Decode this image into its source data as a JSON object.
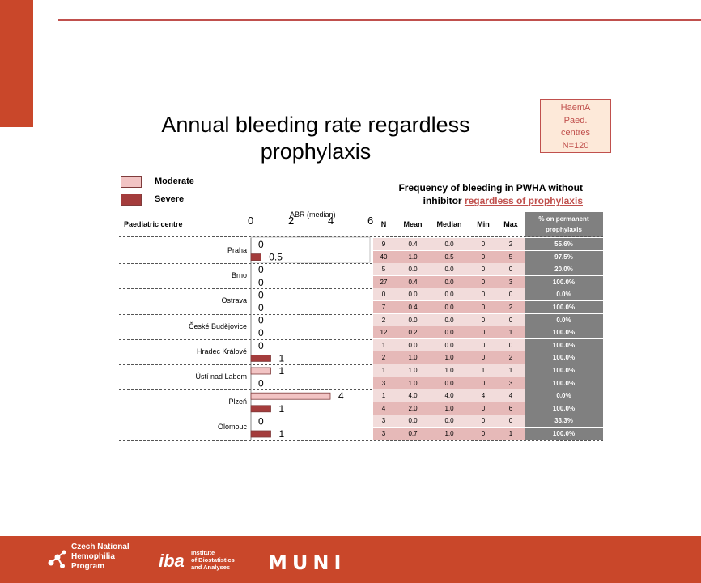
{
  "title": "Annual bleeding rate regardless prophylaxis",
  "haema_box": [
    "HaemA",
    "Paed.",
    "centres",
    "N=120"
  ],
  "legend": [
    {
      "label": "Moderate",
      "color": "#f2c4c4"
    },
    {
      "label": "Severe",
      "color": "#a43c3c"
    }
  ],
  "table_title": {
    "line1": "Frequency of bleeding in PWHA without",
    "line2_prefix": "inhibitor ",
    "line2_highlight": "regardless of prophylaxis"
  },
  "headers": {
    "centre": "Paediatric centre",
    "n": "N",
    "mean": "Mean",
    "median": "Median",
    "min": "Min",
    "max": "Max",
    "pct_line1": "% on permanent",
    "pct_line2": "prophylaxis"
  },
  "chart_data": {
    "type": "bar",
    "orientation": "horizontal",
    "title": "",
    "xlabel": "ABR (median)",
    "xlim": [
      0,
      6
    ],
    "xticks": [
      "0",
      "2",
      "4",
      "6"
    ],
    "categories": [
      "Praha",
      "Brno",
      "Ostrava",
      "České Budějovice",
      "Hradec Králové",
      "Ústí nad Labem",
      "Plzeň",
      "Olomouc"
    ],
    "series": [
      {
        "name": "Moderate",
        "color": "#f2c4c4",
        "values": [
          0,
          0,
          0,
          0,
          0,
          1,
          4,
          0
        ],
        "labels": [
          "0",
          "0",
          "0",
          "0",
          "0",
          "1",
          "4",
          "0"
        ]
      },
      {
        "name": "Severe",
        "color": "#a43c3c",
        "values": [
          0.5,
          0,
          0,
          0,
          1,
          0,
          1,
          1
        ],
        "labels": [
          "0.5",
          "0",
          "0",
          "0",
          "1",
          "0",
          "1",
          "1"
        ]
      }
    ]
  },
  "rows": [
    {
      "centre": "Praha",
      "moderate": {
        "n": "9",
        "mean": "0.4",
        "median": "0.0",
        "min": "0",
        "max": "2",
        "pct": "55.6%"
      },
      "severe": {
        "n": "40",
        "mean": "1.0",
        "median": "0.5",
        "min": "0",
        "max": "5",
        "pct": "97.5%"
      }
    },
    {
      "centre": "Brno",
      "moderate": {
        "n": "5",
        "mean": "0.0",
        "median": "0.0",
        "min": "0",
        "max": "0",
        "pct": "20.0%"
      },
      "severe": {
        "n": "27",
        "mean": "0.4",
        "median": "0.0",
        "min": "0",
        "max": "3",
        "pct": "100.0%"
      }
    },
    {
      "centre": "Ostrava",
      "moderate": {
        "n": "0",
        "mean": "0.0",
        "median": "0.0",
        "min": "0",
        "max": "0",
        "pct": "0.0%"
      },
      "severe": {
        "n": "7",
        "mean": "0.4",
        "median": "0.0",
        "min": "0",
        "max": "2",
        "pct": "100.0%"
      }
    },
    {
      "centre": "České Budějovice",
      "moderate": {
        "n": "2",
        "mean": "0.0",
        "median": "0.0",
        "min": "0",
        "max": "0",
        "pct": "0.0%"
      },
      "severe": {
        "n": "12",
        "mean": "0.2",
        "median": "0.0",
        "min": "0",
        "max": "1",
        "pct": "100.0%"
      }
    },
    {
      "centre": "Hradec Králové",
      "moderate": {
        "n": "1",
        "mean": "0.0",
        "median": "0.0",
        "min": "0",
        "max": "0",
        "pct": "100.0%"
      },
      "severe": {
        "n": "2",
        "mean": "1.0",
        "median": "1.0",
        "min": "0",
        "max": "2",
        "pct": "100.0%"
      }
    },
    {
      "centre": "Ústí nad Labem",
      "moderate": {
        "n": "1",
        "mean": "1.0",
        "median": "1.0",
        "min": "1",
        "max": "1",
        "pct": "100.0%"
      },
      "severe": {
        "n": "3",
        "mean": "1.0",
        "median": "0.0",
        "min": "0",
        "max": "3",
        "pct": "100.0%"
      }
    },
    {
      "centre": "Plzeň",
      "moderate": {
        "n": "1",
        "mean": "4.0",
        "median": "4.0",
        "min": "4",
        "max": "4",
        "pct": "0.0%"
      },
      "severe": {
        "n": "4",
        "mean": "2.0",
        "median": "1.0",
        "min": "0",
        "max": "6",
        "pct": "100.0%"
      }
    },
    {
      "centre": "Olomouc",
      "moderate": {
        "n": "3",
        "mean": "0.0",
        "median": "0.0",
        "min": "0",
        "max": "0",
        "pct": "33.3%"
      },
      "severe": {
        "n": "3",
        "mean": "0.7",
        "median": "1.0",
        "min": "0",
        "max": "1",
        "pct": "100.0%"
      }
    }
  ],
  "footer": {
    "cz_logo": [
      "Czech National",
      "Hemophilia",
      "Program"
    ],
    "iba_logo": "iba",
    "iba_sub": [
      "Institute",
      "of Biostatistics",
      "and Analyses"
    ],
    "muni_logo": "MUNI",
    "background": "#c9472a"
  }
}
